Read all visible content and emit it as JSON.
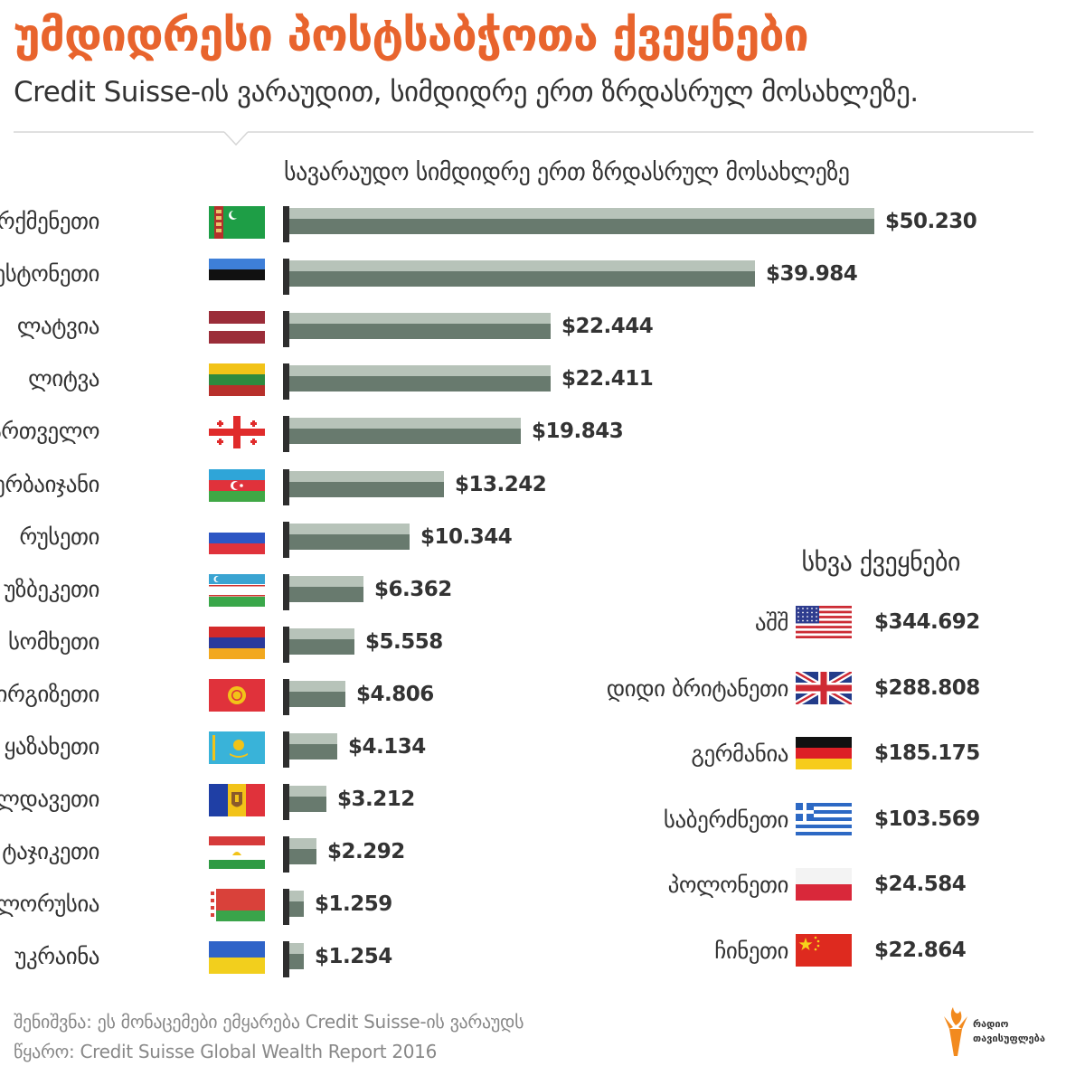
{
  "header": {
    "title": "უმდიდრესი პოსტსაბჭოთა ქვეყნები",
    "subtitle": "Credit Suisse-ის ვარაუდით, სიმდიდრე ერთ ზრდასრულ მოსახლეზე."
  },
  "chart_data": [
    {
      "type": "bar",
      "orientation": "horizontal",
      "title": "სავარაუდო სიმდიდრე ერთ ზრდასრულ მოსახლეზე",
      "xlim": [
        0,
        50230
      ],
      "categories": [
        "თურქმენეთი",
        "ესტონეთი",
        "ლატვია",
        "ლიტვა",
        "საქართველო",
        "აზერბაიჯანი",
        "რუსეთი",
        "უზბეკეთი",
        "სომხეთი",
        "ყირგიზეთი",
        "ყაზახეთი",
        "მოლდავეთი",
        "ტაჯიკეთი",
        "ბელორუსია",
        "უკრაინა"
      ],
      "values": [
        50230,
        39984,
        22444,
        22411,
        19843,
        13242,
        10344,
        6362,
        5558,
        4806,
        4134,
        3212,
        2292,
        1259,
        1254
      ],
      "value_labels": [
        "$50.230",
        "$39.984",
        "$22.444",
        "$22.411",
        "$19.843",
        "$13.242",
        "$10.344",
        "$6.362",
        "$5.558",
        "$4.806",
        "$4.134",
        "$3.212",
        "$2.292",
        "$1.259",
        "$1.254"
      ],
      "flags": [
        "turkmenistan-flag",
        "estonia-flag",
        "latvia-flag",
        "lithuania-flag",
        "georgia-flag",
        "azerbaijan-flag",
        "russia-flag",
        "uzbekistan-flag",
        "armenia-flag",
        "kyrgyzstan-flag",
        "kazakhstan-flag",
        "moldova-flag",
        "tajikistan-flag",
        "belarus-flag",
        "ukraine-flag"
      ]
    },
    {
      "type": "table",
      "title": "სხვა ქვეყნები",
      "categories": [
        "აშშ",
        "დიდი ბრიტანეთი",
        "გერმანია",
        "საბერძნეთი",
        "პოლონეთი",
        "ჩინეთი"
      ],
      "values": [
        344692,
        288808,
        185175,
        103569,
        24584,
        22864
      ],
      "value_labels": [
        "$344.692",
        "$288.808",
        "$185.175",
        "$103.569",
        "$24.584",
        "$22.864"
      ],
      "flags": [
        "usa-flag",
        "uk-flag",
        "germany-flag",
        "greece-flag",
        "poland-flag",
        "china-flag"
      ]
    }
  ],
  "colors": {
    "title": "#e8642d",
    "bar_light": "#b7c3b9",
    "bar_dark": "#687a6e",
    "axis": "#2e2e2e",
    "note_text": "#888888"
  },
  "footer": {
    "note": "შენიშვნა: ეს მონაცემები ემყარება Credit Suisse-ის ვარაუდს",
    "source": "წყარო: Credit Suisse Global Wealth Report 2016",
    "logo_line1": "რადიო",
    "logo_line2": "თავისუფლება"
  }
}
